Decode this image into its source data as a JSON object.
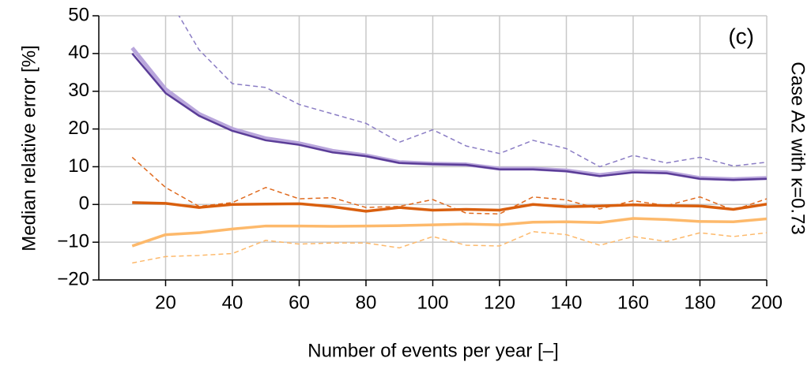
{
  "chart_data": {
    "type": "line",
    "ylabel": "Median relative error [%]",
    "xlabel": "Number of events per year [–]",
    "side_label": "Case A2 with κ=0.73",
    "annotation": "(c)",
    "x": [
      10,
      20,
      30,
      40,
      50,
      60,
      70,
      80,
      90,
      100,
      110,
      120,
      130,
      140,
      150,
      160,
      170,
      180,
      190,
      200
    ],
    "series": [
      {
        "color": "#b9a6dc",
        "width": 5,
        "dashed": false,
        "values": [
          41.5,
          30.5,
          24,
          20,
          17.5,
          16.2,
          14.2,
          13,
          11.2,
          10.8,
          10.6,
          9.5,
          9.5,
          9,
          7.8,
          8.8,
          8.5,
          7,
          6.7,
          7
        ]
      },
      {
        "color": "#5b3d98",
        "width": 2.5,
        "dashed": false,
        "values": [
          40,
          29.5,
          23.5,
          19.5,
          17,
          15.8,
          13.8,
          12.8,
          11,
          10.7,
          10.5,
          9.3,
          9.3,
          8.8,
          7.5,
          8.5,
          8.3,
          6.8,
          6.5,
          6.8
        ]
      },
      {
        "color": "#8a7cc4",
        "width": 1.5,
        "dashed": true,
        "values": [
          null,
          56,
          41,
          32,
          31,
          26.5,
          24,
          21.5,
          16.5,
          19.8,
          15.5,
          13.5,
          17,
          14.8,
          10,
          13,
          11,
          12.5,
          10.2,
          11.2
        ]
      },
      {
        "color": "#e06a1e",
        "width": 1.5,
        "dashed": true,
        "values": [
          12.5,
          4.5,
          -0.5,
          0.5,
          4.5,
          1.5,
          1.8,
          -0.8,
          -0.5,
          1.3,
          -2.3,
          -2.5,
          2,
          1.2,
          -1.2,
          1,
          -0.3,
          2,
          -1.5,
          1.5
        ]
      },
      {
        "color": "#d95f0e",
        "width": 3.5,
        "dashed": false,
        "values": [
          0.5,
          0.3,
          -0.8,
          0,
          0.1,
          0.2,
          -0.6,
          -1.8,
          -0.8,
          -1.5,
          -1.3,
          -1.5,
          0,
          -0.6,
          -0.4,
          -0.1,
          -0.3,
          -0.4,
          -1.3,
          0.1
        ]
      },
      {
        "color": "#fdb96b",
        "width": 3.5,
        "dashed": false,
        "values": [
          -11,
          -8,
          -7.5,
          -6.5,
          -5.7,
          -5.7,
          -5.8,
          -5.7,
          -5.6,
          -5.4,
          -5.2,
          -5.4,
          -4.7,
          -4.6,
          -4.8,
          -3.7,
          -4,
          -4.5,
          -4.6,
          -3.8
        ]
      },
      {
        "color": "#fdb96b",
        "width": 1.5,
        "dashed": true,
        "values": [
          -15.5,
          -13.8,
          -13.5,
          -13,
          -9.5,
          -10.5,
          -10.2,
          -10.2,
          -11.5,
          -8.5,
          -10.8,
          -11,
          -7.2,
          -8,
          -10.8,
          -8.5,
          -9.8,
          -7.5,
          -8.5,
          -7.5
        ]
      }
    ],
    "xlim": [
      0,
      200
    ],
    "xticks": [
      20,
      40,
      60,
      80,
      100,
      120,
      140,
      160,
      180,
      200
    ],
    "ylim": [
      -20,
      50
    ],
    "yticks": [
      {
        "value": -20,
        "label": "−20"
      },
      {
        "value": -10,
        "label": "−10"
      },
      0,
      10,
      20,
      30,
      40,
      50
    ],
    "grid": true
  }
}
